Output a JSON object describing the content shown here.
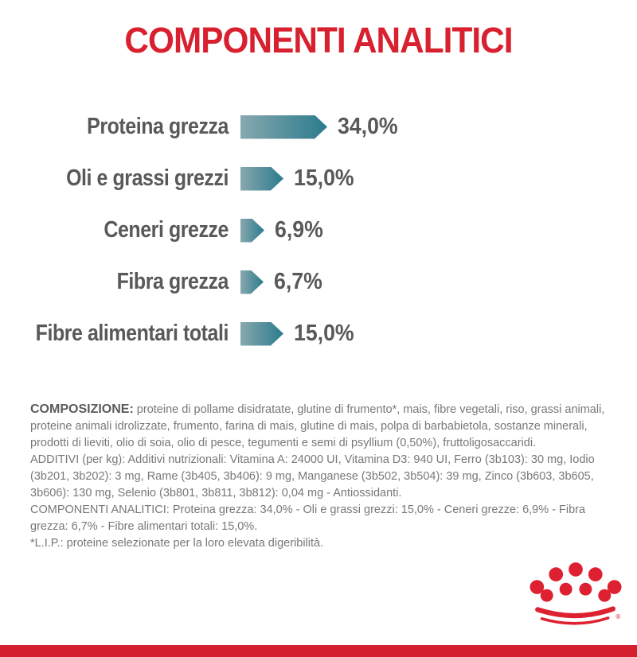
{
  "header": {
    "title": "COMPONENTI ANALITICI"
  },
  "chart_data": {
    "type": "bar",
    "orientation": "horizontal",
    "title": "COMPONENTI ANALITICI",
    "categories": [
      "Proteina grezza",
      "Oli e grassi grezzi",
      "Ceneri grezze",
      "Fibra grezza",
      "Fibre alimentari totali"
    ],
    "values": [
      34.0,
      15.0,
      6.9,
      6.7,
      15.0
    ],
    "value_labels": [
      "34,0%",
      "15,0%",
      "6,9%",
      "6,7%",
      "15,0%"
    ],
    "unit": "%",
    "legend": "none",
    "grid": false,
    "bar_shape": "right-pointing-arrow",
    "bar_gradient_start": "#87A8AF",
    "bar_gradient_end": "#2B7B8D"
  },
  "info": {
    "composition_label": "COMPOSIZIONE:",
    "composition_text": " proteine di pollame disidratate, glutine di frumento*, mais, fibre vegetali, riso, grassi animali, proteine animali idrolizzate, frumento, farina di mais, glutine di mais, polpa di barbabietola, sostanze minerali, prodotti di lieviti, olio di soia, olio di pesce, tegumenti e semi di psyllium (0,50%), fruttoligosaccaridi.",
    "additives_text": "ADDITIVI (per kg): Additivi nutrizionali: Vitamina A: 24000 UI, Vitamina D3: 940 UI, Ferro (3b103): 30 mg, Iodio (3b201, 3b202): 3 mg, Rame (3b405, 3b406): 9 mg, Manganese (3b502, 3b504): 39 mg, Zinco (3b603, 3b605, 3b606): 130 mg, Selenio (3b801, 3b811, 3b812): 0,04 mg - Antiossidanti.",
    "analytical_text": "COMPONENTI ANALITICI: Proteina grezza: 34,0% - Oli e grassi grezzi: 15,0% - Ceneri grezze: 6,9% - Fibra grezza: 6,7% - Fibre alimentari totali: 15,0%.",
    "footnote": "*L.I.P.: proteine selezionate per la loro elevata digeribilità."
  },
  "branding": {
    "logo_name": "royal-canin-crown-logo",
    "registered_mark": "®",
    "brand_red": "#D8202F",
    "bottom_bar_red": "#D41F2E",
    "label_gray": "#58595B",
    "body_gray": "#77787B"
  }
}
